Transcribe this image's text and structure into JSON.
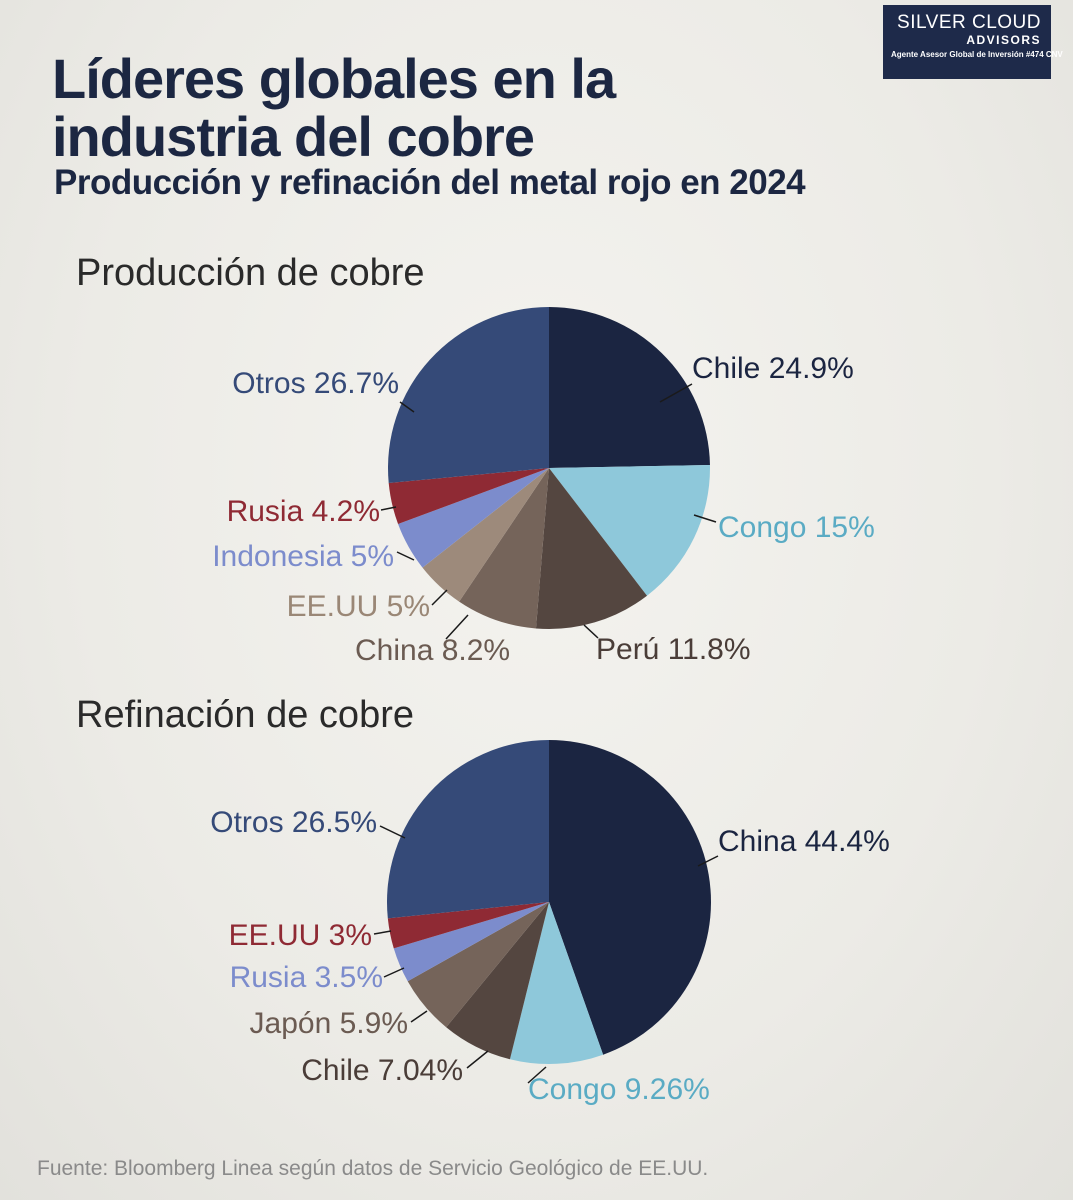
{
  "brand": {
    "line1": "SILVER CLOUD",
    "line2": "ADVISORS",
    "line3": "Agente Asesor Global de Inversión #474 CNV"
  },
  "header": {
    "title": "Líderes globales en la industria del cobre",
    "subtitle": "Producción y refinación del metal rojo en 2024"
  },
  "colors": {
    "chile_dark": "#1b2541",
    "otros": "#354a78",
    "congo": "#8ec8da",
    "peru_dark_brown": "#544640",
    "china_brown": "#75645a",
    "eeuu_tan": "#9d8a7b",
    "indonesia_periwinkle": "#7c8ccc",
    "rusia_red": "#8f2a34"
  },
  "chart_data": [
    {
      "type": "pie",
      "title": "Producción de cobre",
      "slices": [
        {
          "label": "Chile 24.9%",
          "name": "Chile",
          "value": 24.9,
          "color": "#1b2541",
          "text_color": "#1b2541"
        },
        {
          "label": "Congo 15%",
          "name": "Congo",
          "value": 15,
          "color": "#8ec8da",
          "text_color": "#5aabc4"
        },
        {
          "label": "Perú 11.8%",
          "name": "Perú",
          "value": 11.8,
          "color": "#544640",
          "text_color": "#4a3d38"
        },
        {
          "label": "China 8.2%",
          "name": "China",
          "value": 8.2,
          "color": "#75645a",
          "text_color": "#6b5b52"
        },
        {
          "label": "EE.UU 5%",
          "name": "EE.UU",
          "value": 5,
          "color": "#9d8a7b",
          "text_color": "#9a8776"
        },
        {
          "label": "Indonesia 5%",
          "name": "Indonesia",
          "value": 5,
          "color": "#7c8ccc",
          "text_color": "#7c8ccc"
        },
        {
          "label": "Rusia 4.2%",
          "name": "Rusia",
          "value": 4.2,
          "color": "#8f2a34",
          "text_color": "#8f2a34"
        },
        {
          "label": "Otros 26.7%",
          "name": "Otros",
          "value": 26.7,
          "color": "#354a78",
          "text_color": "#354a78"
        }
      ]
    },
    {
      "type": "pie",
      "title": "Refinación de cobre",
      "slices": [
        {
          "label": "China 44.4%",
          "name": "China",
          "value": 44.4,
          "color": "#1b2541",
          "text_color": "#1b2541"
        },
        {
          "label": "Congo 9.26%",
          "name": "Congo",
          "value": 9.26,
          "color": "#8ec8da",
          "text_color": "#5aabc4"
        },
        {
          "label": "Chile 7.04%",
          "name": "Chile",
          "value": 7.04,
          "color": "#544640",
          "text_color": "#4a3d38"
        },
        {
          "label": "Japón 5.9%",
          "name": "Japón",
          "value": 5.9,
          "color": "#75645a",
          "text_color": "#6b5b52"
        },
        {
          "label": "Rusia 3.5%",
          "name": "Rusia",
          "value": 3.5,
          "color": "#7c8ccc",
          "text_color": "#7c8ccc"
        },
        {
          "label": "EE.UU 3%",
          "name": "EE.UU",
          "value": 3,
          "color": "#8f2a34",
          "text_color": "#8f2a34"
        },
        {
          "label": "Otros 26.5%",
          "name": "Otros",
          "value": 26.5,
          "color": "#354a78",
          "text_color": "#354a78"
        }
      ]
    }
  ],
  "source": "Fuente: Bloomberg Linea según datos de Servicio Geológico de EE.UU."
}
